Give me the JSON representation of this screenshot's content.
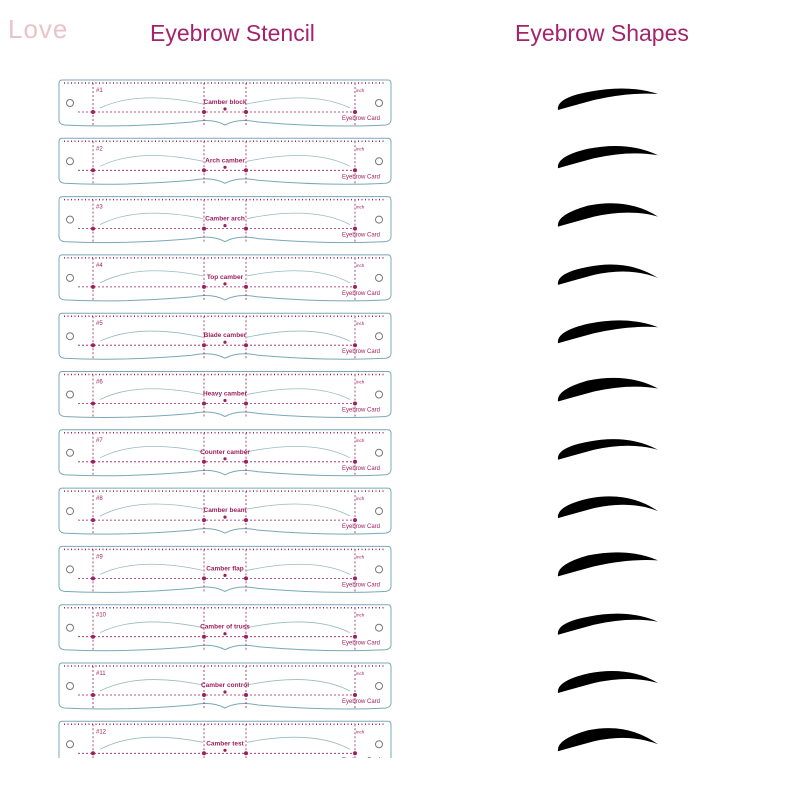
{
  "watermark": "Love",
  "left_title": "Eyebrow Stencil",
  "right_title": "Eyebrow Shapes",
  "card_brand": "Eyebrow Card",
  "card_unit": "inch",
  "colors": {
    "title": "#a3246d",
    "guide": "#9c1f5e",
    "outline": "#7aa8b8"
  },
  "stencils": [
    {
      "num": "#1",
      "name": "Camber block"
    },
    {
      "num": "#2",
      "name": "Arch camber"
    },
    {
      "num": "#3",
      "name": "Camber arch"
    },
    {
      "num": "#4",
      "name": "Top camber"
    },
    {
      "num": "#5",
      "name": "Blade camber"
    },
    {
      "num": "#6",
      "name": "Heavy camber"
    },
    {
      "num": "#7",
      "name": "Counter camber"
    },
    {
      "num": "#8",
      "name": "Camber beam"
    },
    {
      "num": "#9",
      "name": "Camber flap"
    },
    {
      "num": "#10",
      "name": "Camber of truss"
    },
    {
      "num": "#11",
      "name": "Camber control"
    },
    {
      "num": "#12",
      "name": "Camber test"
    }
  ]
}
